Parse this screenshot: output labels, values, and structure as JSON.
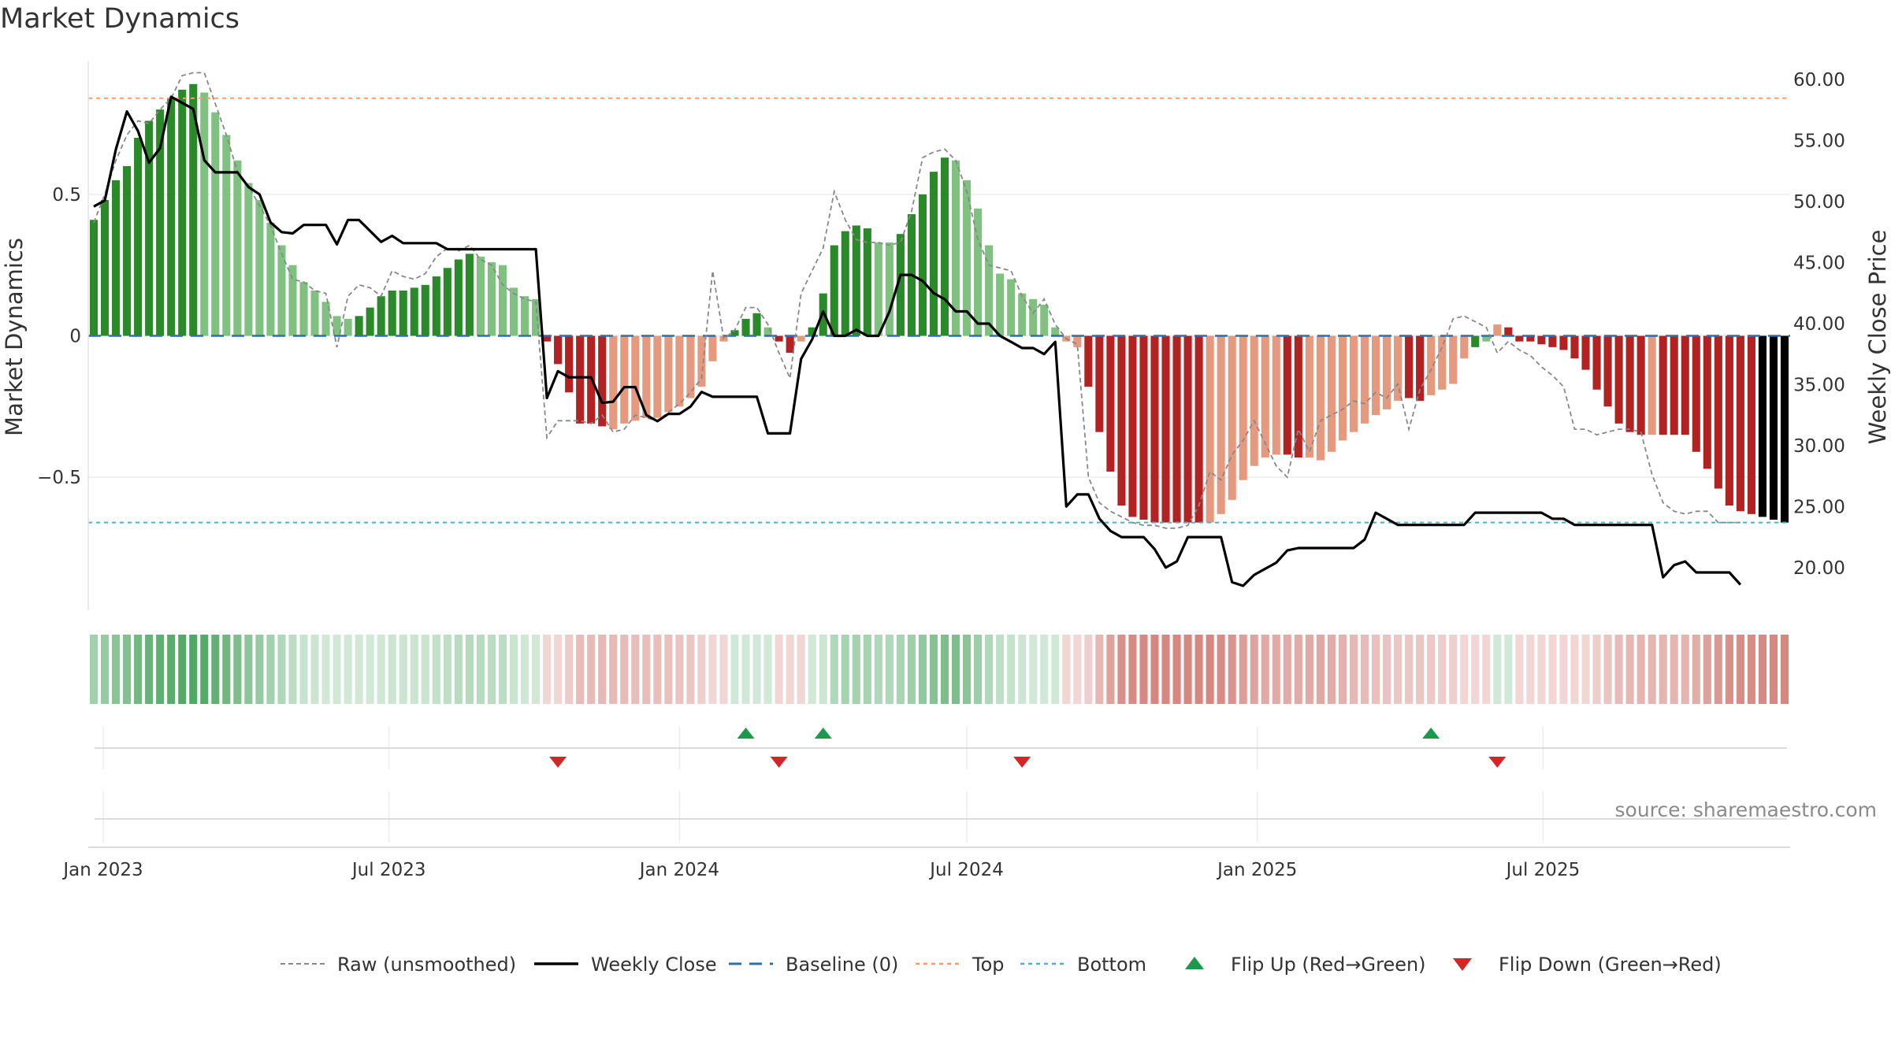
{
  "title": "Market Dynamics",
  "watermark": "source: sharemaestro.com",
  "colors": {
    "strong_green": "#2a8a2a",
    "light_green": "#80c080",
    "strong_red": "#b22222",
    "light_red": "#e59a80",
    "weekly_close": "#000000",
    "raw": "#888888",
    "baseline": "#2f6fa8",
    "top": "#f0a070",
    "bottom": "#40b8c8",
    "flip_up": "#1a9a4a",
    "flip_down": "#d02828"
  },
  "chart_data": {
    "type": "bar",
    "title": "Market Dynamics",
    "x_start": "2022-12-26",
    "x_step_days": 7,
    "left_axis": {
      "label": "Market Dynamics",
      "ylim": [
        -0.97,
        0.97
      ],
      "ticks": [
        -0.5,
        0,
        0.5
      ],
      "tick_labels": [
        "−0.5",
        "0",
        "0.5"
      ]
    },
    "right_axis": {
      "label": "Weekly Close Price",
      "ylim": [
        16.5,
        61.5
      ],
      "ticks": [
        20,
        25,
        30,
        35,
        40,
        45,
        50,
        55,
        60
      ],
      "tick_labels": [
        "20.00",
        "25.00",
        "30.00",
        "35.00",
        "40.00",
        "45.00",
        "50.00",
        "55.00",
        "60.00"
      ]
    },
    "x_ticks": [
      "Jan 2023",
      "Jul 2023",
      "Jan 2024",
      "Jul 2024",
      "Jan 2025",
      "Jul 2025"
    ],
    "x_tick_dates": [
      "2023-01-01",
      "2023-07-01",
      "2024-01-01",
      "2024-07-01",
      "2025-01-01",
      "2025-07-01"
    ],
    "top_level": 0.84,
    "bottom_level": -0.66,
    "baseline": 0,
    "bar_values": [
      0.41,
      0.48,
      0.55,
      0.6,
      0.7,
      0.76,
      0.8,
      0.84,
      0.87,
      0.89,
      0.86,
      0.79,
      0.71,
      0.62,
      0.54,
      0.48,
      0.4,
      0.32,
      0.25,
      0.19,
      0.16,
      0.12,
      0.07,
      0.06,
      0.07,
      0.1,
      0.14,
      0.16,
      0.16,
      0.17,
      0.18,
      0.21,
      0.24,
      0.27,
      0.29,
      0.28,
      0.26,
      0.25,
      0.17,
      0.14,
      0.13,
      -0.02,
      -0.1,
      -0.2,
      -0.31,
      -0.31,
      -0.32,
      -0.33,
      -0.31,
      -0.3,
      -0.29,
      -0.29,
      -0.27,
      -0.25,
      -0.22,
      -0.18,
      -0.09,
      -0.02,
      0.02,
      0.06,
      0.08,
      0.03,
      -0.02,
      -0.06,
      -0.02,
      0.03,
      0.15,
      0.32,
      0.37,
      0.39,
      0.38,
      0.33,
      0.33,
      0.36,
      0.43,
      0.5,
      0.58,
      0.63,
      0.62,
      0.55,
      0.45,
      0.32,
      0.22,
      0.2,
      0.15,
      0.13,
      0.11,
      0.03,
      -0.02,
      -0.04,
      -0.18,
      -0.34,
      -0.48,
      -0.6,
      -0.64,
      -0.65,
      -0.66,
      -0.66,
      -0.66,
      -0.66,
      -0.66,
      -0.66,
      -0.63,
      -0.58,
      -0.51,
      -0.46,
      -0.43,
      -0.42,
      -0.42,
      -0.43,
      -0.43,
      -0.44,
      -0.41,
      -0.37,
      -0.34,
      -0.31,
      -0.28,
      -0.26,
      -0.23,
      -0.22,
      -0.23,
      -0.21,
      -0.19,
      -0.17,
      -0.08,
      -0.04,
      -0.02,
      0.04,
      0.03,
      -0.02,
      -0.02,
      -0.03,
      -0.04,
      -0.05,
      -0.08,
      -0.12,
      -0.19,
      -0.25,
      -0.31,
      -0.34,
      -0.35,
      -0.35,
      -0.35,
      -0.35,
      -0.35,
      -0.41,
      -0.47,
      -0.54,
      -0.6,
      -0.62,
      -0.63,
      -0.64,
      -0.65,
      -0.66
    ],
    "raw_values": [
      0.4,
      0.5,
      0.62,
      0.71,
      0.76,
      0.75,
      0.8,
      0.84,
      0.92,
      0.93,
      0.93,
      0.82,
      0.71,
      0.58,
      0.53,
      0.46,
      0.39,
      0.29,
      0.2,
      0.19,
      0.16,
      0.15,
      -0.04,
      0.14,
      0.18,
      0.17,
      0.14,
      0.23,
      0.21,
      0.2,
      0.22,
      0.28,
      0.31,
      0.3,
      0.32,
      0.27,
      0.25,
      0.18,
      0.15,
      0.13,
      0.12,
      -0.36,
      -0.3,
      -0.3,
      -0.3,
      -0.31,
      -0.28,
      -0.34,
      -0.33,
      -0.28,
      -0.29,
      -0.3,
      -0.27,
      -0.24,
      -0.2,
      -0.15,
      0.23,
      -0.01,
      0.02,
      0.1,
      0.1,
      0.04,
      -0.06,
      -0.15,
      0.15,
      0.23,
      0.31,
      0.51,
      0.41,
      0.34,
      0.33,
      0.33,
      0.32,
      0.33,
      0.44,
      0.63,
      0.65,
      0.66,
      0.62,
      0.51,
      0.34,
      0.25,
      0.24,
      0.23,
      0.14,
      0.08,
      0.13,
      0.04,
      -0.01,
      -0.03,
      -0.5,
      -0.59,
      -0.62,
      -0.64,
      -0.66,
      -0.67,
      -0.67,
      -0.68,
      -0.68,
      -0.67,
      -0.6,
      -0.48,
      -0.51,
      -0.42,
      -0.37,
      -0.3,
      -0.38,
      -0.46,
      -0.5,
      -0.33,
      -0.41,
      -0.3,
      -0.28,
      -0.26,
      -0.23,
      -0.24,
      -0.2,
      -0.22,
      -0.17,
      -0.33,
      -0.19,
      -0.12,
      -0.04,
      0.06,
      0.07,
      0.05,
      0.03,
      -0.06,
      -0.02,
      -0.05,
      -0.07,
      -0.11,
      -0.14,
      -0.18,
      -0.33,
      -0.33,
      -0.35,
      -0.34,
      -0.33,
      -0.33,
      -0.34,
      -0.49,
      -0.59,
      -0.62,
      -0.63,
      -0.62,
      -0.62,
      -0.66,
      -0.66,
      -0.66
    ],
    "weekly_close": [
      49.6,
      50.1,
      54.3,
      57.4,
      55.8,
      53.2,
      54.4,
      58.6,
      58.1,
      57.6,
      53.4,
      52.4,
      52.4,
      52.4,
      51.2,
      50.6,
      48.3,
      47.5,
      47.4,
      48.1,
      48.1,
      48.1,
      46.5,
      48.5,
      48.5,
      47.6,
      46.7,
      47.2,
      46.6,
      46.6,
      46.6,
      46.6,
      46.1,
      46.1,
      46.1,
      46.1,
      46.1,
      46.1,
      46.1,
      46.1,
      46.1,
      33.9,
      36.1,
      35.6,
      35.6,
      35.6,
      33.5,
      33.6,
      34.8,
      34.8,
      32.5,
      32.0,
      32.6,
      32.6,
      33.2,
      34.4,
      34.0,
      34.0,
      34.0,
      34.0,
      34.0,
      31.0,
      31.0,
      31.0,
      37.1,
      38.7,
      41.0,
      39.0,
      39.0,
      39.5,
      39.0,
      39.0,
      41.0,
      44.0,
      44.0,
      43.5,
      42.5,
      42.0,
      41.0,
      41.0,
      40.0,
      40.0,
      39.0,
      38.5,
      38.0,
      38.0,
      37.5,
      38.5,
      25.0,
      26.0,
      26.0,
      24.0,
      23.0,
      22.5,
      22.5,
      22.5,
      21.5,
      20.0,
      20.5,
      22.5,
      22.5,
      22.5,
      22.5,
      18.8,
      18.5,
      19.4,
      19.9,
      20.4,
      21.4,
      21.6,
      21.6,
      21.6,
      21.6,
      21.6,
      21.6,
      22.3,
      24.5,
      24.0,
      23.5,
      23.5,
      23.5,
      23.5,
      23.5,
      23.5,
      23.5,
      24.5,
      24.5,
      24.5,
      24.5,
      24.5,
      24.5,
      24.5,
      24.0,
      24.0,
      23.5,
      23.5,
      23.5,
      23.5,
      23.5,
      23.5,
      23.5,
      23.5,
      19.2,
      20.2,
      20.5,
      19.6,
      19.6,
      19.6,
      19.6,
      18.6
    ],
    "bar_colors": [
      "strong_green",
      "strong_green",
      "strong_green",
      "strong_green",
      "strong_green",
      "strong_green",
      "strong_green",
      "strong_green",
      "strong_green",
      "strong_green",
      "light_green",
      "light_green",
      "light_green",
      "light_green",
      "light_green",
      "light_green",
      "light_green",
      "light_green",
      "light_green",
      "light_green",
      "light_green",
      "light_green",
      "light_green",
      "light_green",
      "strong_green",
      "strong_green",
      "strong_green",
      "strong_green",
      "strong_green",
      "strong_green",
      "strong_green",
      "strong_green",
      "strong_green",
      "strong_green",
      "strong_green",
      "light_green",
      "light_green",
      "light_green",
      "light_green",
      "light_green",
      "light_green",
      "strong_red",
      "strong_red",
      "strong_red",
      "strong_red",
      "strong_red",
      "strong_red",
      "light_red",
      "light_red",
      "light_red",
      "light_red",
      "light_red",
      "light_red",
      "light_red",
      "light_red",
      "light_red",
      "light_red",
      "light_red",
      "strong_green",
      "strong_green",
      "strong_green",
      "light_green",
      "strong_red",
      "strong_red",
      "light_red",
      "strong_green",
      "strong_green",
      "strong_green",
      "strong_green",
      "strong_green",
      "strong_green",
      "light_green",
      "light_green",
      "strong_green",
      "strong_green",
      "strong_green",
      "strong_green",
      "strong_green",
      "light_green",
      "light_green",
      "light_green",
      "light_green",
      "light_green",
      "light_green",
      "light_green",
      "light_green",
      "light_green",
      "light_green",
      "light_red",
      "light_red",
      "strong_red",
      "strong_red",
      "strong_red",
      "strong_red",
      "strong_red",
      "strong_red",
      "strong_red",
      "strong_red",
      "strong_red",
      "strong_red",
      "strong_red",
      "light_red",
      "light_red",
      "light_red",
      "light_red",
      "light_red",
      "light_red",
      "light_red",
      "strong_red",
      "strong_red",
      "light_red",
      "light_red",
      "light_red",
      "light_red",
      "light_red",
      "light_red",
      "light_red",
      "light_red",
      "light_red",
      "strong_red",
      "strong_red",
      "light_red",
      "light_red",
      "light_red",
      "light_red",
      "strong_green",
      "light_green",
      "light_red",
      "strong_red",
      "strong_red",
      "strong_red",
      "strong_red",
      "strong_red",
      "strong_red",
      "strong_red",
      "strong_red",
      "strong_red",
      "strong_red",
      "strong_red",
      "strong_red",
      "strong_red",
      "light_red",
      "strong_red",
      "strong_red",
      "strong_red",
      "strong_red",
      "strong_red",
      "strong_red",
      "strong_red",
      "strong_red",
      "strong_red"
    ],
    "flip_up_dates": [
      "2024-02-12",
      "2024-04-01",
      "2025-04-21"
    ],
    "flip_down_dates": [
      "2023-10-16",
      "2024-03-04",
      "2024-08-05",
      "2025-06-02"
    ],
    "legend_position": "bottom-center",
    "legend": [
      {
        "label": "Raw (unsmoothed)",
        "style": "dashed-gray"
      },
      {
        "label": "Weekly Close",
        "style": "solid-black"
      },
      {
        "label": "Baseline (0)",
        "style": "dashed-blue"
      },
      {
        "label": "Top",
        "style": "dotted-orange"
      },
      {
        "label": "Bottom",
        "style": "dotted-cyan"
      },
      {
        "label": "Flip Up (Red→Green)",
        "style": "triangle-up-green"
      },
      {
        "label": "Flip Down (Green→Red)",
        "style": "triangle-down-red"
      }
    ]
  }
}
